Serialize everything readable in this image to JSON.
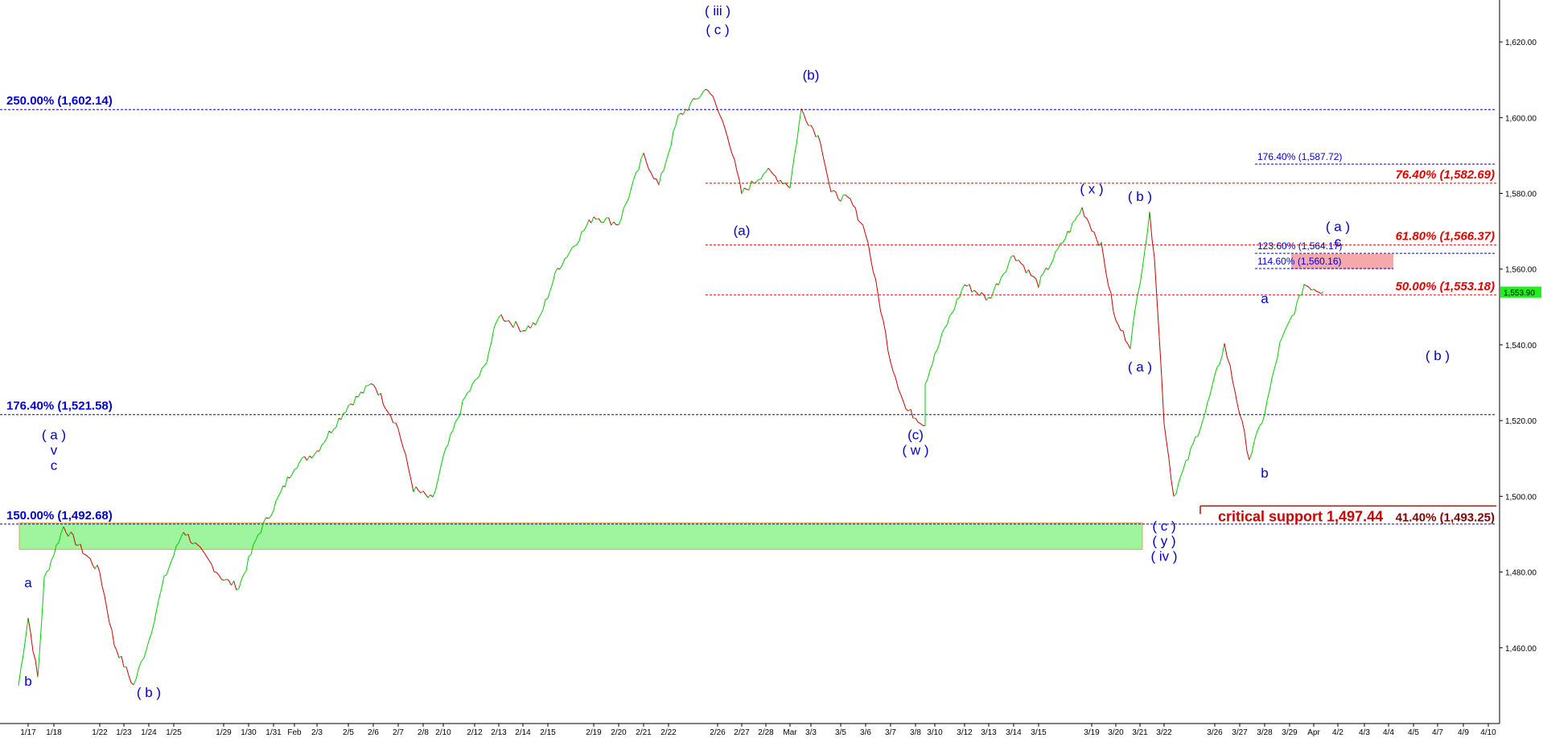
{
  "chart_data": {
    "type": "line",
    "ylim": [
      1440,
      1630
    ],
    "y_ticks": [
      1460,
      1480,
      1500,
      1520,
      1540,
      1560,
      1580,
      1600,
      1620
    ],
    "y_tick_labels": [
      "1,460.00",
      "1,480.00",
      "1,500.00",
      "1,520.00",
      "1,540.00",
      "1,560.00",
      "1,580.00",
      "1,600.00",
      "1,620.00"
    ],
    "x_ticks": [
      "1/17",
      "1/18",
      "1/22",
      "1/23",
      "1/24",
      "1/25",
      "1/29",
      "1/30",
      "1/31",
      "Feb",
      "2/3",
      "2/5",
      "2/6",
      "2/7",
      "2/8",
      "2/10",
      "2/12",
      "2/13",
      "2/14",
      "2/15",
      "2/19",
      "2/20",
      "2/21",
      "2/22",
      "2/26",
      "2/27",
      "2/28",
      "Mar",
      "3/3",
      "3/5",
      "3/6",
      "3/7",
      "3/8",
      "3/10",
      "3/12",
      "3/13",
      "3/14",
      "3/15",
      "3/19",
      "3/20",
      "3/21",
      "3/22",
      "3/26",
      "3/27",
      "3/28",
      "3/29",
      "Apr",
      "4/2",
      "4/3",
      "4/4",
      "4/5",
      "4/7",
      "4/9",
      "4/10"
    ],
    "price_path": [
      {
        "x": "1/17",
        "y": 1450
      },
      {
        "x": "1/17",
        "y": 1468
      },
      {
        "x": "1/17",
        "y": 1452
      },
      {
        "x": "1/18",
        "y": 1478
      },
      {
        "x": "1/18",
        "y": 1492
      },
      {
        "x": "1/22",
        "y": 1480
      },
      {
        "x": "1/23",
        "y": 1461
      },
      {
        "x": "1/23",
        "y": 1450
      },
      {
        "x": "1/24",
        "y": 1462
      },
      {
        "x": "1/25",
        "y": 1478
      },
      {
        "x": "1/25",
        "y": 1491
      },
      {
        "x": "1/29",
        "y": 1478
      },
      {
        "x": "1/30",
        "y": 1476
      },
      {
        "x": "1/30",
        "y": 1490
      },
      {
        "x": "1/31",
        "y": 1497
      },
      {
        "x": "Feb",
        "y": 1508
      },
      {
        "x": "2/3",
        "y": 1512
      },
      {
        "x": "2/5",
        "y": 1524
      },
      {
        "x": "2/6",
        "y": 1530
      },
      {
        "x": "2/7",
        "y": 1518
      },
      {
        "x": "2/8",
        "y": 1502
      },
      {
        "x": "2/8",
        "y": 1499
      },
      {
        "x": "2/10",
        "y": 1510
      },
      {
        "x": "2/12",
        "y": 1526
      },
      {
        "x": "2/12",
        "y": 1534
      },
      {
        "x": "2/13",
        "y": 1548
      },
      {
        "x": "2/14",
        "y": 1544
      },
      {
        "x": "2/15",
        "y": 1546
      },
      {
        "x": "2/15",
        "y": 1560
      },
      {
        "x": "2/19",
        "y": 1574
      },
      {
        "x": "2/20",
        "y": 1572
      },
      {
        "x": "2/21",
        "y": 1590
      },
      {
        "x": "2/22",
        "y": 1582
      },
      {
        "x": "2/22",
        "y": 1600
      },
      {
        "x": "2/26",
        "y": 1608
      },
      {
        "x": "2/26",
        "y": 1596
      },
      {
        "x": "2/27",
        "y": 1580
      },
      {
        "x": "2/28",
        "y": 1586
      },
      {
        "x": "Mar",
        "y": 1582
      },
      {
        "x": "3/3",
        "y": 1602
      },
      {
        "x": "3/3",
        "y": 1594
      },
      {
        "x": "3/5",
        "y": 1580
      },
      {
        "x": "3/5",
        "y": 1578
      },
      {
        "x": "3/6",
        "y": 1570
      },
      {
        "x": "3/7",
        "y": 1536
      },
      {
        "x": "3/8",
        "y": 1523
      },
      {
        "x": "3/8",
        "y": 1519
      },
      {
        "x": "3/10",
        "y": 1530
      },
      {
        "x": "3/10",
        "y": 1544
      },
      {
        "x": "3/12",
        "y": 1556
      },
      {
        "x": "3/13",
        "y": 1552
      },
      {
        "x": "3/14",
        "y": 1564
      },
      {
        "x": "3/15",
        "y": 1556
      },
      {
        "x": "3/19",
        "y": 1576
      },
      {
        "x": "3/19",
        "y": 1566
      },
      {
        "x": "3/20",
        "y": 1546
      },
      {
        "x": "3/21",
        "y": 1540
      },
      {
        "x": "3/21",
        "y": 1574
      },
      {
        "x": "3/22",
        "y": 1564
      },
      {
        "x": "3/22",
        "y": 1520
      },
      {
        "x": "3/22",
        "y": 1500
      },
      {
        "x": "3/26",
        "y": 1522
      },
      {
        "x": "3/26",
        "y": 1540
      },
      {
        "x": "3/27",
        "y": 1534
      },
      {
        "x": "3/27",
        "y": 1510
      },
      {
        "x": "3/28",
        "y": 1522
      },
      {
        "x": "3/29",
        "y": 1540
      },
      {
        "x": "3/29",
        "y": 1552
      },
      {
        "x": "Apr",
        "y": 1556
      },
      {
        "x": "Apr",
        "y": 1554
      }
    ],
    "last_price": "1,553.90",
    "zones": [
      {
        "name": "support-zone",
        "color": "#9ef59e",
        "x_start": "1/17",
        "x_end": "3/21",
        "y_low": 1486,
        "y_high": 1493
      },
      {
        "name": "resistance-zone",
        "color": "#f5a9a9",
        "x_start": "3/29",
        "x_end": "4/3",
        "y_low": 1560,
        "y_high": 1564
      }
    ],
    "colors": {
      "up": "#00cc00",
      "down": "#cc0000",
      "blue_line": "#0000cc",
      "red_line": "#e00000",
      "price_tag": "#22ee22"
    }
  },
  "fib_levels": [
    {
      "label": "250.00% (1,602.14)",
      "value": 1602.14,
      "color": "blue"
    },
    {
      "label": "176.40% (1,521.58)",
      "value": 1521.58,
      "color": "blue"
    },
    {
      "label": "150.00% (1,492.68)",
      "value": 1492.68,
      "color": "blue"
    },
    {
      "label": "76.40% (1,582.69)",
      "value": 1582.69,
      "color": "red"
    },
    {
      "label": "61.80% (1,566.37)",
      "value": 1566.37,
      "color": "red"
    },
    {
      "label": "50.00% (1,553.18)",
      "value": 1553.18,
      "color": "red"
    },
    {
      "label": "176.40% (1,587.72)",
      "value": 1587.72,
      "color": "blue"
    },
    {
      "label": "123.60% (1,564.17)",
      "value": 1564.17,
      "color": "blue"
    },
    {
      "label": "114.60% (1,560.16)",
      "value": 1560.16,
      "color": "blue"
    }
  ],
  "critical_support": {
    "label": "critical support 1,497.44",
    "value": 1497.44,
    "extra_label": "41.40% (1,493.25)"
  },
  "wave_labels": [
    {
      "text": "( iii )",
      "x": "2/26",
      "y": 1627
    },
    {
      "text": "( c )",
      "x": "2/26",
      "y": 1622
    },
    {
      "text": "(b)",
      "x": "3/3",
      "y": 1610
    },
    {
      "text": "(a)",
      "x": "2/27",
      "y": 1569
    },
    {
      "text": "( x )",
      "x": "3/19",
      "y": 1580
    },
    {
      "text": "( b )",
      "x": "3/21",
      "y": 1578
    },
    {
      "text": "( a )",
      "x": "4/2",
      "y": 1570
    },
    {
      "text": "c",
      "x": "4/2",
      "y": 1566
    },
    {
      "text": "a",
      "x": "3/28",
      "y": 1551
    },
    {
      "text": "( a )",
      "x": "3/21",
      "y": 1533
    },
    {
      "text": "( b )",
      "x": "4/7",
      "y": 1536
    },
    {
      "text": "(c)",
      "x": "3/8",
      "y": 1515
    },
    {
      "text": "( w )",
      "x": "3/8",
      "y": 1511
    },
    {
      "text": "b",
      "x": "3/28",
      "y": 1505
    },
    {
      "text": "( c )",
      "x": "3/22",
      "y": 1491
    },
    {
      "text": "( y )",
      "x": "3/22",
      "y": 1487
    },
    {
      "text": "( iv )",
      "x": "3/22",
      "y": 1483
    },
    {
      "text": "( a )",
      "x": "1/18",
      "y": 1515
    },
    {
      "text": "v",
      "x": "1/18",
      "y": 1511
    },
    {
      "text": "c",
      "x": "1/18",
      "y": 1507
    },
    {
      "text": "a",
      "x": "1/17",
      "y": 1476
    },
    {
      "text": "b",
      "x": "1/17",
      "y": 1450
    },
    {
      "text": "( b )",
      "x": "1/24",
      "y": 1447
    }
  ]
}
